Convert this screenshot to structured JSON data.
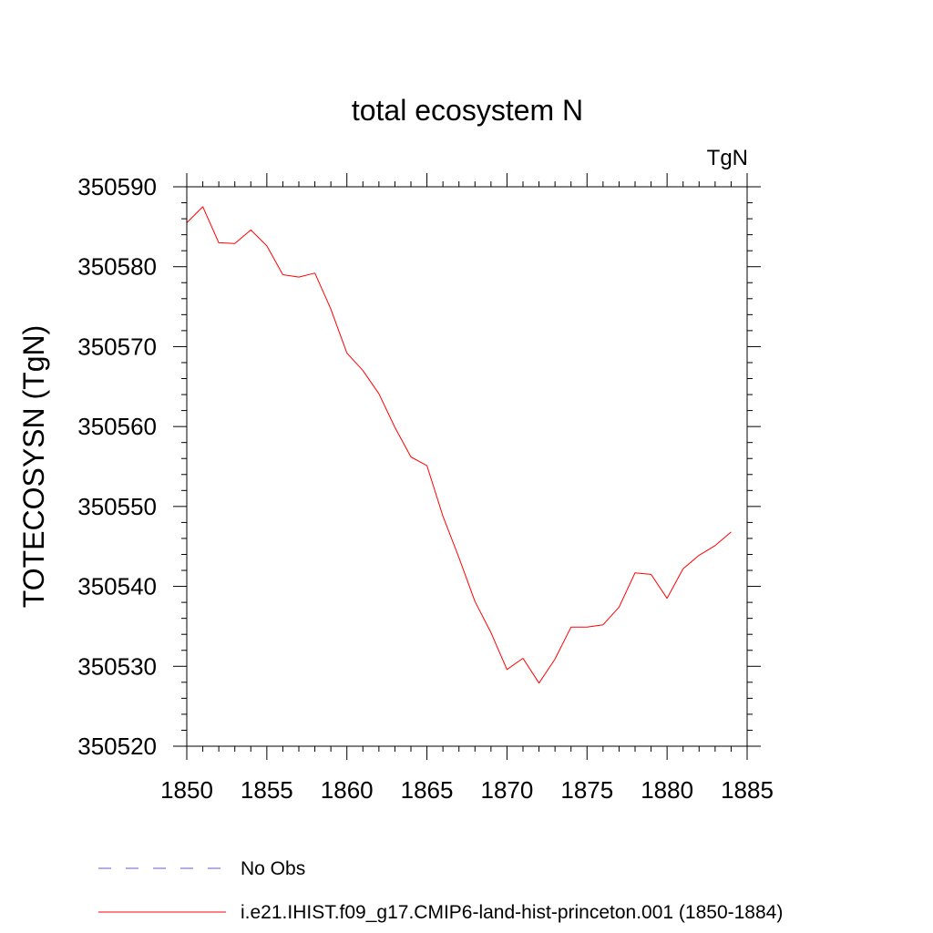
{
  "chart_data": {
    "type": "line",
    "title": "total ecosystem N",
    "units_label": "TgN",
    "xlabel": "",
    "ylabel": "TOTECOSYSN  (TgN)",
    "xlim": [
      1850,
      1885
    ],
    "ylim": [
      350520,
      350590
    ],
    "x_ticks": [
      1850,
      1855,
      1860,
      1865,
      1870,
      1875,
      1880,
      1885
    ],
    "y_ticks": [
      350520,
      350530,
      350540,
      350550,
      350560,
      350570,
      350580,
      350590
    ],
    "grid": false,
    "legend_position": "bottom",
    "series": [
      {
        "name": "i.e21.IHIST.f09_g17.CMIP6-land-hist-princeton.001 (1850-1884)",
        "color": "#ff0000",
        "dash": "solid",
        "x": [
          1850,
          1851,
          1852,
          1853,
          1854,
          1855,
          1856,
          1857,
          1858,
          1859,
          1860,
          1861,
          1862,
          1863,
          1864,
          1865,
          1866,
          1867,
          1868,
          1869,
          1870,
          1871,
          1872,
          1873,
          1874,
          1875,
          1876,
          1877,
          1878,
          1879,
          1880,
          1881,
          1882,
          1883,
          1884
        ],
        "y": [
          350585.5,
          350587.5,
          350583.0,
          350582.9,
          350584.6,
          350582.6,
          350579.0,
          350578.7,
          350579.2,
          350574.7,
          350569.2,
          350567.0,
          350564.1,
          350559.9,
          350556.2,
          350555.1,
          350548.8,
          350543.6,
          350538.1,
          350534.2,
          350529.6,
          350531.0,
          350527.9,
          350530.9,
          350534.9,
          350534.9,
          350535.2,
          350537.4,
          350541.7,
          350541.5,
          350538.5,
          350542.2,
          350543.9,
          350545.1,
          350546.8
        ]
      }
    ],
    "legend": [
      {
        "label": "No Obs",
        "color": "#6a5acd",
        "dash": "dashed"
      },
      {
        "label": "i.e21.IHIST.f09_g17.CMIP6-land-hist-princeton.001 (1850-1884)",
        "color": "#ff0000",
        "dash": "solid"
      }
    ]
  }
}
